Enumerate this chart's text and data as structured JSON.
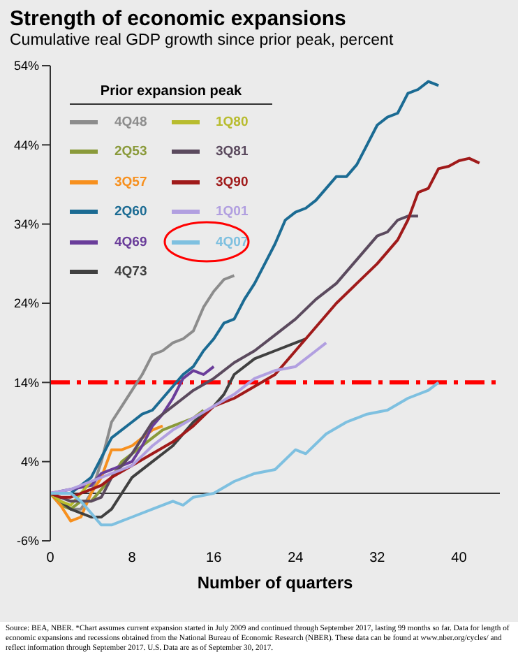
{
  "chart_data": {
    "type": "line",
    "title": "Strength of economic expansions",
    "subtitle": "Cumulative real GDP growth since prior peak, percent",
    "xlabel": "Number of quarters",
    "legend_title": "Prior expansion peak",
    "legend": "top left",
    "grid": false,
    "marker": "none",
    "line_style": "solid",
    "xlim": [
      0,
      44
    ],
    "xticks": [
      0,
      8,
      16,
      24,
      32,
      40
    ],
    "ylim": [
      -6,
      54
    ],
    "yticks": [
      {
        "value": -6,
        "label": "-6%"
      },
      {
        "value": 4,
        "label": "4%"
      },
      {
        "value": 14,
        "label": "14%"
      },
      {
        "value": 24,
        "label": "24%"
      },
      {
        "value": 34,
        "label": "34%"
      },
      {
        "value": 44,
        "label": "44%"
      },
      {
        "value": 54,
        "label": "54%"
      }
    ],
    "ref_lines": [
      {
        "axis": "y",
        "value": 0,
        "color": "#333333",
        "line_style": "solid"
      },
      {
        "axis": "y",
        "value": 14,
        "color": "#ff0000",
        "line_style": "dashdot"
      }
    ],
    "series": [
      {
        "name": "4Q48",
        "color": "#8c8c8c",
        "x": [
          0,
          1,
          2,
          3,
          4,
          5,
          6,
          7,
          8,
          9,
          10,
          11,
          12,
          13,
          14,
          15,
          16,
          17,
          18
        ],
        "values": [
          0,
          -1,
          -2,
          -2,
          0,
          4,
          9,
          11,
          13,
          15,
          17.5,
          18,
          19,
          19.5,
          20.5,
          23.5,
          25.5,
          27,
          27.5
        ]
      },
      {
        "name": "2Q53",
        "color": "#8a9a3a",
        "x": [
          0,
          1,
          2,
          3,
          4,
          5,
          6,
          7,
          8,
          9,
          10,
          11,
          12,
          13,
          14,
          15
        ],
        "values": [
          0,
          -1.5,
          -2,
          -1,
          -1,
          0.5,
          2,
          4,
          5,
          6,
          7,
          8,
          8.5,
          9,
          9.5,
          10.5
        ]
      },
      {
        "name": "3Q57",
        "color": "#f7901e",
        "x": [
          0,
          1,
          2,
          3,
          4,
          5,
          6,
          7,
          8,
          9,
          10,
          11
        ],
        "values": [
          0,
          -1.5,
          -3.5,
          -3,
          0,
          2,
          5.5,
          5.5,
          6,
          7,
          8,
          8.5
        ]
      },
      {
        "name": "2Q60",
        "color": "#1b6b93",
        "x": [
          0,
          2,
          4,
          5,
          6,
          8,
          9,
          10,
          11,
          12,
          13,
          14,
          15,
          16,
          17,
          18,
          19,
          20,
          21,
          22,
          23,
          24,
          25,
          26,
          27,
          28,
          29,
          30,
          31,
          32,
          33,
          34,
          35,
          36,
          37,
          38
        ],
        "values": [
          0,
          0,
          2,
          4.5,
          7,
          9,
          10,
          10.5,
          12,
          13.5,
          15,
          16,
          18,
          19.5,
          21.5,
          22,
          24.5,
          26.5,
          29,
          31.5,
          34.5,
          35.5,
          36,
          37,
          38.5,
          40,
          40,
          41.5,
          44,
          46.5,
          47.5,
          48,
          50.5,
          51,
          52,
          51.5
        ]
      },
      {
        "name": "4Q69",
        "color": "#6a3d9a",
        "x": [
          0,
          2,
          4,
          5,
          8,
          9,
          10,
          11,
          12,
          13,
          14,
          15,
          16
        ],
        "values": [
          0,
          0.5,
          1,
          2.5,
          4,
          6,
          8.5,
          10,
          12,
          14.5,
          15.5,
          15,
          16
        ]
      },
      {
        "name": "4Q73",
        "color": "#404040",
        "x": [
          0,
          2,
          4,
          5,
          6,
          7,
          8,
          10,
          12,
          14,
          16,
          17,
          18,
          20,
          22,
          24,
          25
        ],
        "values": [
          0,
          -2,
          -3,
          -3,
          -2,
          0,
          2,
          4,
          6,
          9,
          11,
          12.5,
          15,
          17,
          18,
          19,
          19.5
        ]
      },
      {
        "name": "1Q80",
        "color": "#b8bc2e",
        "x": [
          0,
          1,
          2,
          3,
          4
        ],
        "values": [
          0,
          -1,
          -1.5,
          0,
          1.5
        ]
      },
      {
        "name": "3Q81",
        "color": "#5b4a5e",
        "x": [
          0,
          2,
          4,
          5,
          6,
          8,
          10,
          12,
          14,
          16,
          18,
          20,
          22,
          24,
          26,
          28,
          30,
          31,
          32,
          33,
          34,
          35,
          36
        ],
        "values": [
          0,
          -1,
          -1,
          -0.5,
          2,
          5,
          9,
          11,
          13,
          14.5,
          16.5,
          18,
          20,
          22,
          24.5,
          26.5,
          29.5,
          31,
          32.5,
          33,
          34.5,
          35,
          35
        ]
      },
      {
        "name": "3Q90",
        "color": "#a01a1a",
        "x": [
          0,
          1,
          2,
          3,
          4,
          5,
          6,
          8,
          10,
          12,
          14,
          16,
          18,
          20,
          22,
          24,
          26,
          28,
          30,
          32,
          33,
          34,
          35,
          36,
          37,
          38,
          39,
          40,
          41,
          42
        ],
        "values": [
          0,
          -0.5,
          -0.5,
          0,
          0.5,
          1,
          2,
          3.5,
          5,
          6.5,
          8.5,
          11,
          12,
          13.5,
          15,
          18,
          21,
          24,
          26.5,
          29,
          30.5,
          32,
          34.5,
          38,
          38.5,
          41,
          41.3,
          42,
          42.3,
          41.7
        ]
      },
      {
        "name": "1Q01",
        "color": "#b19fe0",
        "x": [
          0,
          2,
          4,
          6,
          8,
          10,
          12,
          14,
          16,
          18,
          20,
          22,
          24,
          26,
          27
        ],
        "values": [
          0,
          0.5,
          1.5,
          2.5,
          3.5,
          6,
          8,
          9.5,
          11,
          12.5,
          14.5,
          15.5,
          16,
          18,
          19
        ]
      },
      {
        "name": "4Q07",
        "color": "#7ec0e0",
        "x": [
          0,
          2,
          3,
          4,
          5,
          6,
          7,
          8,
          10,
          12,
          13,
          14,
          16,
          18,
          20,
          22,
          24,
          25,
          27,
          29,
          31,
          33,
          35,
          37,
          38
        ],
        "values": [
          0,
          0,
          -1,
          -2.5,
          -4,
          -4,
          -3.5,
          -3,
          -2,
          -1,
          -1.5,
          -0.5,
          0,
          1.5,
          2.5,
          3,
          5.5,
          5,
          7.5,
          9,
          10,
          10.5,
          12,
          13,
          14
        ]
      }
    ],
    "annotations": [
      "Source: BEA, NBER. *Chart assumes current expansion started in July 2009 and continued through September 2017, lasting 99 months so far. Data for length of economic expansions and recessions obtained from the National Bureau of Economic Research (NBER). These data can be found at www.nber.org/cycles/ and reflect information through September 2017. U.S. Data are as of September 30, 2017."
    ]
  }
}
